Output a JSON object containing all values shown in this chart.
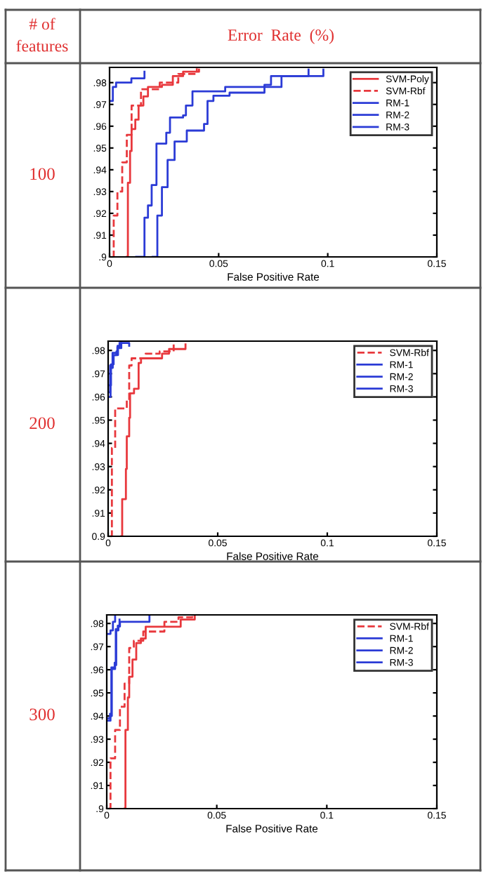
{
  "chart_data": [
    {
      "type": "step",
      "title": "100",
      "annotations": [
        "# of\nfeatures",
        "Error  Rate  (%)"
      ],
      "xlabel": "False Positive Rate",
      "xlim": [
        0,
        0.15
      ],
      "xticks": [
        0,
        0.05,
        0.1,
        0.15
      ],
      "ylim": [
        0.9,
        0.987
      ],
      "yticks": [
        {
          "value": 0.9,
          "label": ".9"
        },
        {
          "value": 0.91,
          "label": ".91"
        },
        {
          "value": 0.92,
          "label": ".92"
        },
        {
          "value": 0.93,
          "label": ".93"
        },
        {
          "value": 0.94,
          "label": ".94"
        },
        {
          "value": 0.95,
          "label": ".95"
        },
        {
          "value": 0.96,
          "label": ".96"
        },
        {
          "value": 0.97,
          "label": ".97"
        },
        {
          "value": 0.98,
          "label": ".98"
        }
      ],
      "grid": false,
      "legend": "top right",
      "series": [
        {
          "name": "SVM-Poly",
          "color": "#e8383d",
          "line_style": "solid",
          "x": [
            0.0079,
            0.0084,
            0.0094,
            0.0101,
            0.0118,
            0.0133,
            0.0155,
            0.0176,
            0.024,
            0.029,
            0.0337,
            0.041
          ],
          "values": [
            0.9,
            0.934,
            0.9486,
            0.9587,
            0.963,
            0.9695,
            0.9737,
            0.978,
            0.979,
            0.983,
            0.985,
            0.986
          ]
        },
        {
          "name": "SVM-Rbf",
          "color": "#e8383d",
          "line_style": "dashed",
          "x": [
            0.0015,
            0.0019,
            0.0036,
            0.0058,
            0.0079,
            0.0101,
            0.0144,
            0.023,
            0.0315,
            0.04
          ],
          "values": [
            0.9,
            0.919,
            0.93,
            0.9434,
            0.956,
            0.9695,
            0.977,
            0.98,
            0.984,
            0.9866
          ]
        },
        {
          "name": "RM-1",
          "color": "#2b3bd6",
          "line_style": "solid",
          "x": [
            0,
            0.0015,
            0.003,
            0.007,
            0.01,
            0.016
          ],
          "values": [
            0.9716,
            0.978,
            0.98,
            0.98,
            0.982,
            0.985
          ]
        },
        {
          "name": "RM-2",
          "color": "#2b3bd6",
          "line_style": "solid",
          "x": [
            0.0122,
            0.016,
            0.0176,
            0.0193,
            0.0215,
            0.026,
            0.0277,
            0.0337,
            0.035,
            0.038,
            0.053,
            0.071,
            0.074,
            0.0912
          ],
          "values": [
            0.9,
            0.918,
            0.9236,
            0.933,
            0.952,
            0.957,
            0.964,
            0.965,
            0.9695,
            0.976,
            0.978,
            0.979,
            0.983,
            0.986
          ]
        },
        {
          "name": "RM-3",
          "color": "#2b3bd6",
          "line_style": "solid",
          "x": [
            0.0197,
            0.0219,
            0.024,
            0.0266,
            0.0298,
            0.0354,
            0.0433,
            0.0449,
            0.0476,
            0.055,
            0.071,
            0.0788,
            0.098
          ],
          "values": [
            0.9,
            0.919,
            0.932,
            0.9445,
            0.953,
            0.958,
            0.961,
            0.9716,
            0.974,
            0.9754,
            0.978,
            0.983,
            0.986
          ]
        }
      ]
    },
    {
      "type": "step",
      "title": "200",
      "xlabel": "False Positive Rate",
      "xlim": [
        0,
        0.15
      ],
      "xticks": [
        0,
        0.05,
        0.1,
        0.15
      ],
      "ylim": [
        0.9,
        0.984
      ],
      "yticks": [
        {
          "value": 0.9,
          "label": "0.9"
        },
        {
          "value": 0.91,
          "label": ".91"
        },
        {
          "value": 0.92,
          "label": ".92"
        },
        {
          "value": 0.93,
          "label": ".93"
        },
        {
          "value": 0.94,
          "label": ".94"
        },
        {
          "value": 0.95,
          "label": ".95"
        },
        {
          "value": 0.96,
          "label": ".96"
        },
        {
          "value": 0.97,
          "label": ".97"
        },
        {
          "value": 0.98,
          "label": ".98"
        }
      ],
      "grid": false,
      "legend": "top right",
      "series": [
        {
          "color": "#e8383d",
          "line_style": "solid",
          "x": [
            0.006,
            0.0064,
            0.0081,
            0.0085,
            0.0096,
            0.01,
            0.0118,
            0.0139,
            0.015,
            0.0246,
            0.0278,
            0.0353
          ],
          "values": [
            0.9,
            0.916,
            0.929,
            0.943,
            0.951,
            0.9615,
            0.9635,
            0.9746,
            0.9766,
            0.9786,
            0.9806,
            0.9826
          ]
        },
        {
          "name": "SVM-Rbf",
          "color": "#e8383d",
          "line_style": "dashed",
          "x": [
            0.0011,
            0.0017,
            0.0032,
            0.0085,
            0.0096,
            0.0107,
            0.0171,
            0.0235,
            0.0299
          ],
          "values": [
            0.9,
            0.938,
            0.955,
            0.9585,
            0.9735,
            0.9766,
            0.9786,
            0.9796,
            0.9826
          ]
        },
        {
          "name": "RM-1",
          "color": "#2b3bd6",
          "line_style": "solid",
          "x": [
            0,
            0.0011,
            0.0021,
            0.0038,
            0.0043,
            0.0056,
            0.0096
          ],
          "values": [
            0.96,
            0.9725,
            0.978,
            0.9796,
            0.982,
            0.9832,
            0.982
          ]
        },
        {
          "name": "RM-2",
          "color": "#2b3bd6",
          "line_style": "solid",
          "x": [
            0,
            0.0013,
            0.0025,
            0.0045,
            0.006
          ],
          "values": [
            0.965,
            0.974,
            0.978,
            0.981,
            0.9832
          ]
        },
        {
          "name": "RM-3",
          "color": "#2b3bd6",
          "line_style": "solid",
          "x": [
            0,
            0.0009,
            0.002,
            0.0042,
            0.0052
          ],
          "values": [
            0.962,
            0.9735,
            0.979,
            0.9815,
            0.9832
          ]
        }
      ]
    },
    {
      "type": "step",
      "title": "300",
      "xlabel": "False Positive Rate",
      "xlim": [
        0,
        0.15
      ],
      "xticks": [
        0,
        0.05,
        0.1,
        0.15
      ],
      "ylim": [
        0.9,
        0.9837
      ],
      "yticks": [
        {
          "value": 0.9,
          "label": ".9"
        },
        {
          "value": 0.91,
          "label": ".91"
        },
        {
          "value": 0.92,
          "label": ".92"
        },
        {
          "value": 0.93,
          "label": ".93"
        },
        {
          "value": 0.94,
          "label": ".94"
        },
        {
          "value": 0.95,
          "label": ".95"
        },
        {
          "value": 0.96,
          "label": ".96"
        },
        {
          "value": 0.97,
          "label": ".97"
        },
        {
          "value": 0.98,
          "label": ".98"
        }
      ],
      "grid": false,
      "legend": "top right",
      "series": [
        {
          "color": "#e8383d",
          "line_style": "solid",
          "x": [
            0.0081,
            0.0085,
            0.0096,
            0.0102,
            0.0117,
            0.0134,
            0.0155,
            0.0177,
            0.0315,
            0.0336,
            0.04
          ],
          "values": [
            0.9,
            0.934,
            0.948,
            0.957,
            0.9644,
            0.9715,
            0.9735,
            0.9786,
            0.9786,
            0.9817,
            0.9837
          ]
        },
        {
          "name": "SVM-Rbf",
          "color": "#e8383d",
          "line_style": "dashed",
          "x": [
            0.001,
            0.0017,
            0.0038,
            0.006,
            0.0081,
            0.0102,
            0.0123,
            0.0166,
            0.0262,
            0.0326,
            0.0389
          ],
          "values": [
            0.9,
            0.9217,
            0.934,
            0.944,
            0.954,
            0.9694,
            0.9725,
            0.9765,
            0.9807,
            0.9827,
            0.9837
          ]
        },
        {
          "name": "RM-1",
          "color": "#2b3bd6",
          "line_style": "solid",
          "x": [
            0.0006,
            0.0017,
            0.0023,
            0.0038,
            0.0043,
            0.0053,
            0.006,
            0.0177,
            0.0194
          ],
          "values": [
            0.938,
            0.94,
            0.9603,
            0.962,
            0.977,
            0.9787,
            0.9807,
            0.9807,
            0.9837
          ]
        },
        {
          "name": "RM-2",
          "color": "#2b3bd6",
          "line_style": "solid",
          "x": [
            0,
            0.0017,
            0.0028,
            0.0038
          ],
          "values": [
            0.9755,
            0.977,
            0.9807,
            0.9837
          ]
        },
        {
          "name": "RM-3",
          "color": "#2b3bd6",
          "line_style": "solid",
          "x": [
            0.0004,
            0.0015,
            0.0021,
            0.0036,
            0.0041,
            0.005,
            0.0058
          ],
          "values": [
            0.939,
            0.941,
            0.961,
            0.963,
            0.9775,
            0.979,
            0.9817
          ]
        }
      ]
    }
  ]
}
